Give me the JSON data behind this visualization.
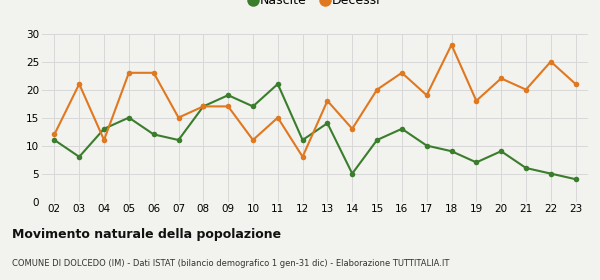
{
  "years": [
    "02",
    "03",
    "04",
    "05",
    "06",
    "07",
    "08",
    "09",
    "10",
    "11",
    "12",
    "13",
    "14",
    "15",
    "16",
    "17",
    "18",
    "19",
    "20",
    "21",
    "22",
    "23"
  ],
  "nascite": [
    11,
    8,
    13,
    15,
    12,
    11,
    17,
    19,
    17,
    21,
    11,
    14,
    5,
    11,
    13,
    10,
    9,
    7,
    9,
    6,
    5,
    4
  ],
  "decessi": [
    12,
    21,
    11,
    23,
    23,
    15,
    17,
    17,
    11,
    15,
    8,
    18,
    13,
    20,
    23,
    19,
    28,
    18,
    22,
    20,
    25,
    21
  ],
  "nascite_color": "#3a7d2c",
  "decessi_color": "#e07820",
  "title": "Movimento naturale della popolazione",
  "subtitle": "COMUNE DI DOLCEDO (IM) - Dati ISTAT (bilancio demografico 1 gen-31 dic) - Elaborazione TUTTITALIA.IT",
  "ylim": [
    0,
    30
  ],
  "yticks": [
    0,
    5,
    10,
    15,
    20,
    25,
    30
  ],
  "legend_nascite": "Nascite",
  "legend_decessi": "Decessi",
  "bg_color": "#f2f2ee",
  "grid_color": "#d8d8d8",
  "marker_size": 4,
  "line_width": 1.5,
  "title_fontsize": 9,
  "subtitle_fontsize": 6,
  "tick_fontsize": 7.5
}
